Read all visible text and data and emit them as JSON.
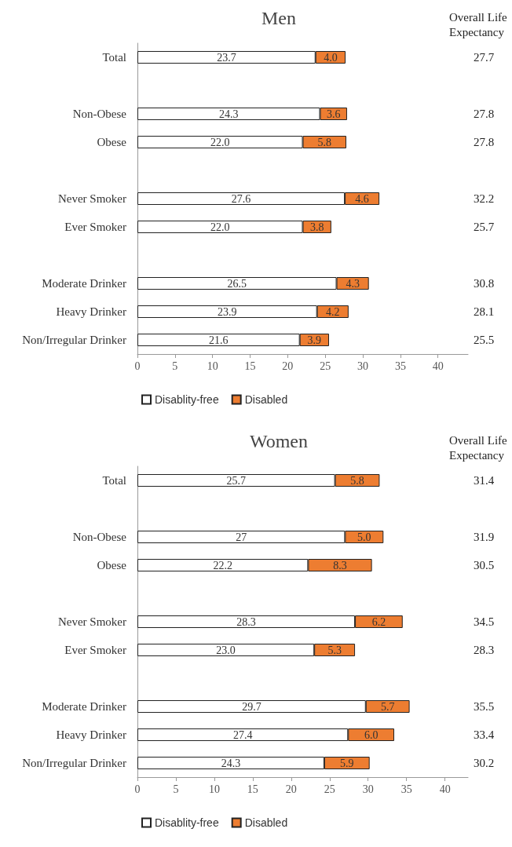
{
  "chart_data": [
    {
      "type": "bar",
      "orientation": "horizontal",
      "stacked": true,
      "title": "Men",
      "annotations": [
        "Overall Life Expectancy",
        "27.7",
        "27.8",
        "27.8",
        "32.2",
        "25.7",
        "30.8",
        "28.1",
        "25.5"
      ],
      "categories": [
        "Total",
        null,
        "Non-Obese",
        "Obese",
        null,
        "Never Smoker",
        "Ever Smoker",
        null,
        "Moderate Drinker",
        "Heavy Drinker",
        "Non/Irregular Drinker"
      ],
      "series": [
        {
          "name": "Disablity-free",
          "color": "#ffffff",
          "values": [
            23.7,
            null,
            24.3,
            22.0,
            null,
            27.6,
            22.0,
            null,
            26.5,
            23.9,
            21.6
          ],
          "value_labels": [
            "23.7",
            null,
            "24.3",
            "22.0",
            null,
            "27.6",
            "22.0",
            null,
            "26.5",
            "23.9",
            "21.6"
          ]
        },
        {
          "name": "Disabled",
          "color": "#ed7d31",
          "values": [
            4.0,
            null,
            3.6,
            5.8,
            null,
            4.6,
            3.8,
            null,
            4.3,
            4.2,
            3.9
          ],
          "value_labels": [
            "4.0",
            null,
            "3.6",
            "5.8",
            null,
            "4.6",
            "3.8",
            null,
            "4.3",
            "4.2",
            "3.9"
          ]
        }
      ],
      "xlim": [
        0,
        44
      ],
      "xticks": [
        0,
        5,
        10,
        15,
        20,
        25,
        30,
        35,
        40
      ],
      "grid": false,
      "legend": "bottom"
    },
    {
      "type": "bar",
      "orientation": "horizontal",
      "stacked": true,
      "title": "Women",
      "annotations": [
        "Overall Life Expectancy",
        "31.4",
        "31.9",
        "30.5",
        "34.5",
        "28.3",
        "35.5",
        "33.4",
        "30.2"
      ],
      "categories": [
        "Total",
        null,
        "Non-Obese",
        "Obese",
        null,
        "Never Smoker",
        "Ever Smoker",
        null,
        "Moderate Drinker",
        "Heavy Drinker",
        "Non/Irregular Drinker"
      ],
      "series": [
        {
          "name": "Disablity-free",
          "color": "#ffffff",
          "values": [
            25.7,
            null,
            27,
            22.2,
            null,
            28.3,
            23.0,
            null,
            29.7,
            27.4,
            24.3
          ],
          "value_labels": [
            "25.7",
            null,
            "27",
            "22.2",
            null,
            "28.3",
            "23.0",
            null,
            "29.7",
            "27.4",
            "24.3"
          ]
        },
        {
          "name": "Disabled",
          "color": "#ed7d31",
          "values": [
            5.8,
            null,
            5.0,
            8.3,
            null,
            6.2,
            5.3,
            null,
            5.7,
            6.0,
            5.9
          ],
          "value_labels": [
            "5.8",
            null,
            "5.0",
            "8.3",
            null,
            "6.2",
            "5.3",
            null,
            "5.7",
            "6.0",
            "5.9"
          ]
        }
      ],
      "xlim": [
        0,
        43
      ],
      "xticks": [
        0,
        5,
        10,
        15,
        20,
        25,
        30,
        35,
        40
      ],
      "grid": false,
      "legend": "bottom"
    }
  ]
}
